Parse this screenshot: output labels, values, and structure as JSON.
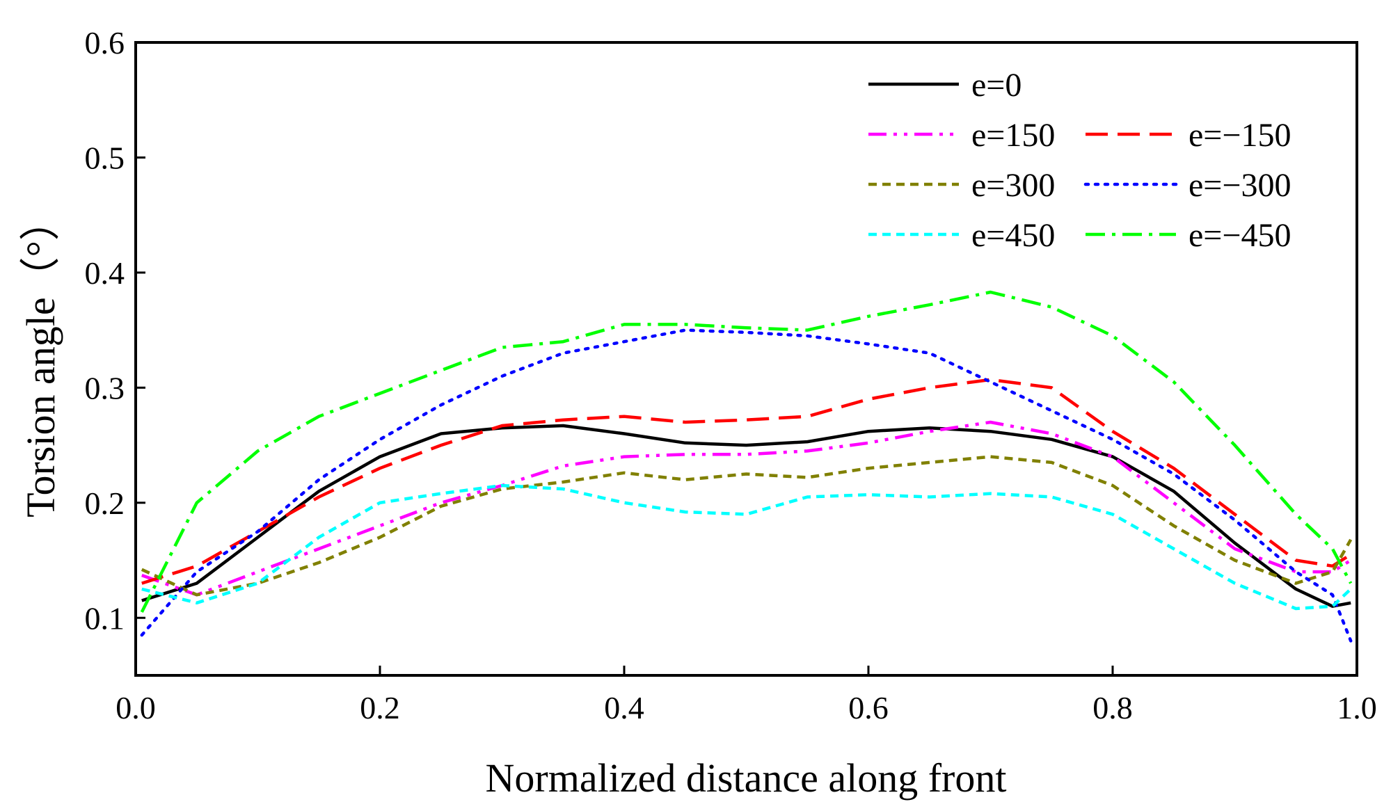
{
  "chart_data": {
    "type": "line",
    "title": "",
    "xlabel": "Normalized distance along front",
    "ylabel": "Torsion angle（°）",
    "xlim": [
      0.0,
      1.0
    ],
    "ylim": [
      0.05,
      0.6
    ],
    "xticks": [
      0.0,
      0.2,
      0.4,
      0.6,
      0.8,
      1.0
    ],
    "xtick_labels": [
      "0.0",
      "0.2",
      "0.4",
      "0.6",
      "0.8",
      "1.0"
    ],
    "yticks": [
      0.1,
      0.2,
      0.3,
      0.4,
      0.5,
      0.6
    ],
    "ytick_labels": [
      "0.1",
      "0.2",
      "0.3",
      "0.4",
      "0.5",
      "0.6"
    ],
    "grid": false,
    "legend_position": "top-right",
    "x": [
      0.005,
      0.05,
      0.1,
      0.15,
      0.2,
      0.25,
      0.3,
      0.35,
      0.4,
      0.45,
      0.5,
      0.55,
      0.6,
      0.65,
      0.7,
      0.75,
      0.8,
      0.85,
      0.9,
      0.95,
      0.98,
      0.995
    ],
    "series": [
      {
        "name": "e=0",
        "color": "#000000",
        "dash": "solid",
        "values": [
          0.115,
          0.13,
          0.17,
          0.21,
          0.24,
          0.26,
          0.265,
          0.267,
          0.26,
          0.252,
          0.25,
          0.253,
          0.262,
          0.265,
          0.262,
          0.255,
          0.24,
          0.21,
          0.165,
          0.125,
          0.11,
          0.113
        ]
      },
      {
        "name": "e=150",
        "color": "#ff00ff",
        "dash": "dash-dot-dot",
        "values": [
          0.137,
          0.12,
          0.14,
          0.16,
          0.18,
          0.2,
          0.215,
          0.232,
          0.24,
          0.242,
          0.242,
          0.245,
          0.252,
          0.262,
          0.27,
          0.26,
          0.24,
          0.2,
          0.16,
          0.14,
          0.14,
          0.15
        ]
      },
      {
        "name": "e=−150",
        "color": "#ff0000",
        "dash": "long-dash",
        "values": [
          0.13,
          0.145,
          0.175,
          0.205,
          0.23,
          0.25,
          0.267,
          0.272,
          0.275,
          0.27,
          0.272,
          0.275,
          0.29,
          0.3,
          0.307,
          0.3,
          0.262,
          0.23,
          0.19,
          0.15,
          0.145,
          0.155
        ]
      },
      {
        "name": "e=300",
        "color": "#808000",
        "dash": "short-dash",
        "values": [
          0.142,
          0.12,
          0.13,
          0.148,
          0.17,
          0.197,
          0.212,
          0.218,
          0.226,
          0.22,
          0.225,
          0.222,
          0.23,
          0.235,
          0.24,
          0.235,
          0.215,
          0.18,
          0.15,
          0.13,
          0.14,
          0.168
        ]
      },
      {
        "name": "e=−300",
        "color": "#0000ff",
        "dash": "dot",
        "values": [
          0.085,
          0.14,
          0.175,
          0.22,
          0.255,
          0.285,
          0.31,
          0.33,
          0.34,
          0.35,
          0.348,
          0.345,
          0.338,
          0.33,
          0.305,
          0.28,
          0.255,
          0.225,
          0.185,
          0.14,
          0.12,
          0.08
        ]
      },
      {
        "name": "e=450",
        "color": "#00ffff",
        "dash": "short-dash",
        "values": [
          0.125,
          0.113,
          0.13,
          0.17,
          0.2,
          0.208,
          0.215,
          0.212,
          0.2,
          0.192,
          0.19,
          0.205,
          0.207,
          0.205,
          0.208,
          0.205,
          0.19,
          0.16,
          0.13,
          0.108,
          0.11,
          0.125
        ]
      },
      {
        "name": "e=−450",
        "color": "#00ff00",
        "dash": "dash-dot",
        "values": [
          0.105,
          0.2,
          0.245,
          0.275,
          0.295,
          0.315,
          0.335,
          0.34,
          0.355,
          0.355,
          0.352,
          0.35,
          0.362,
          0.372,
          0.383,
          0.37,
          0.345,
          0.305,
          0.25,
          0.19,
          0.16,
          0.13
        ]
      }
    ]
  }
}
